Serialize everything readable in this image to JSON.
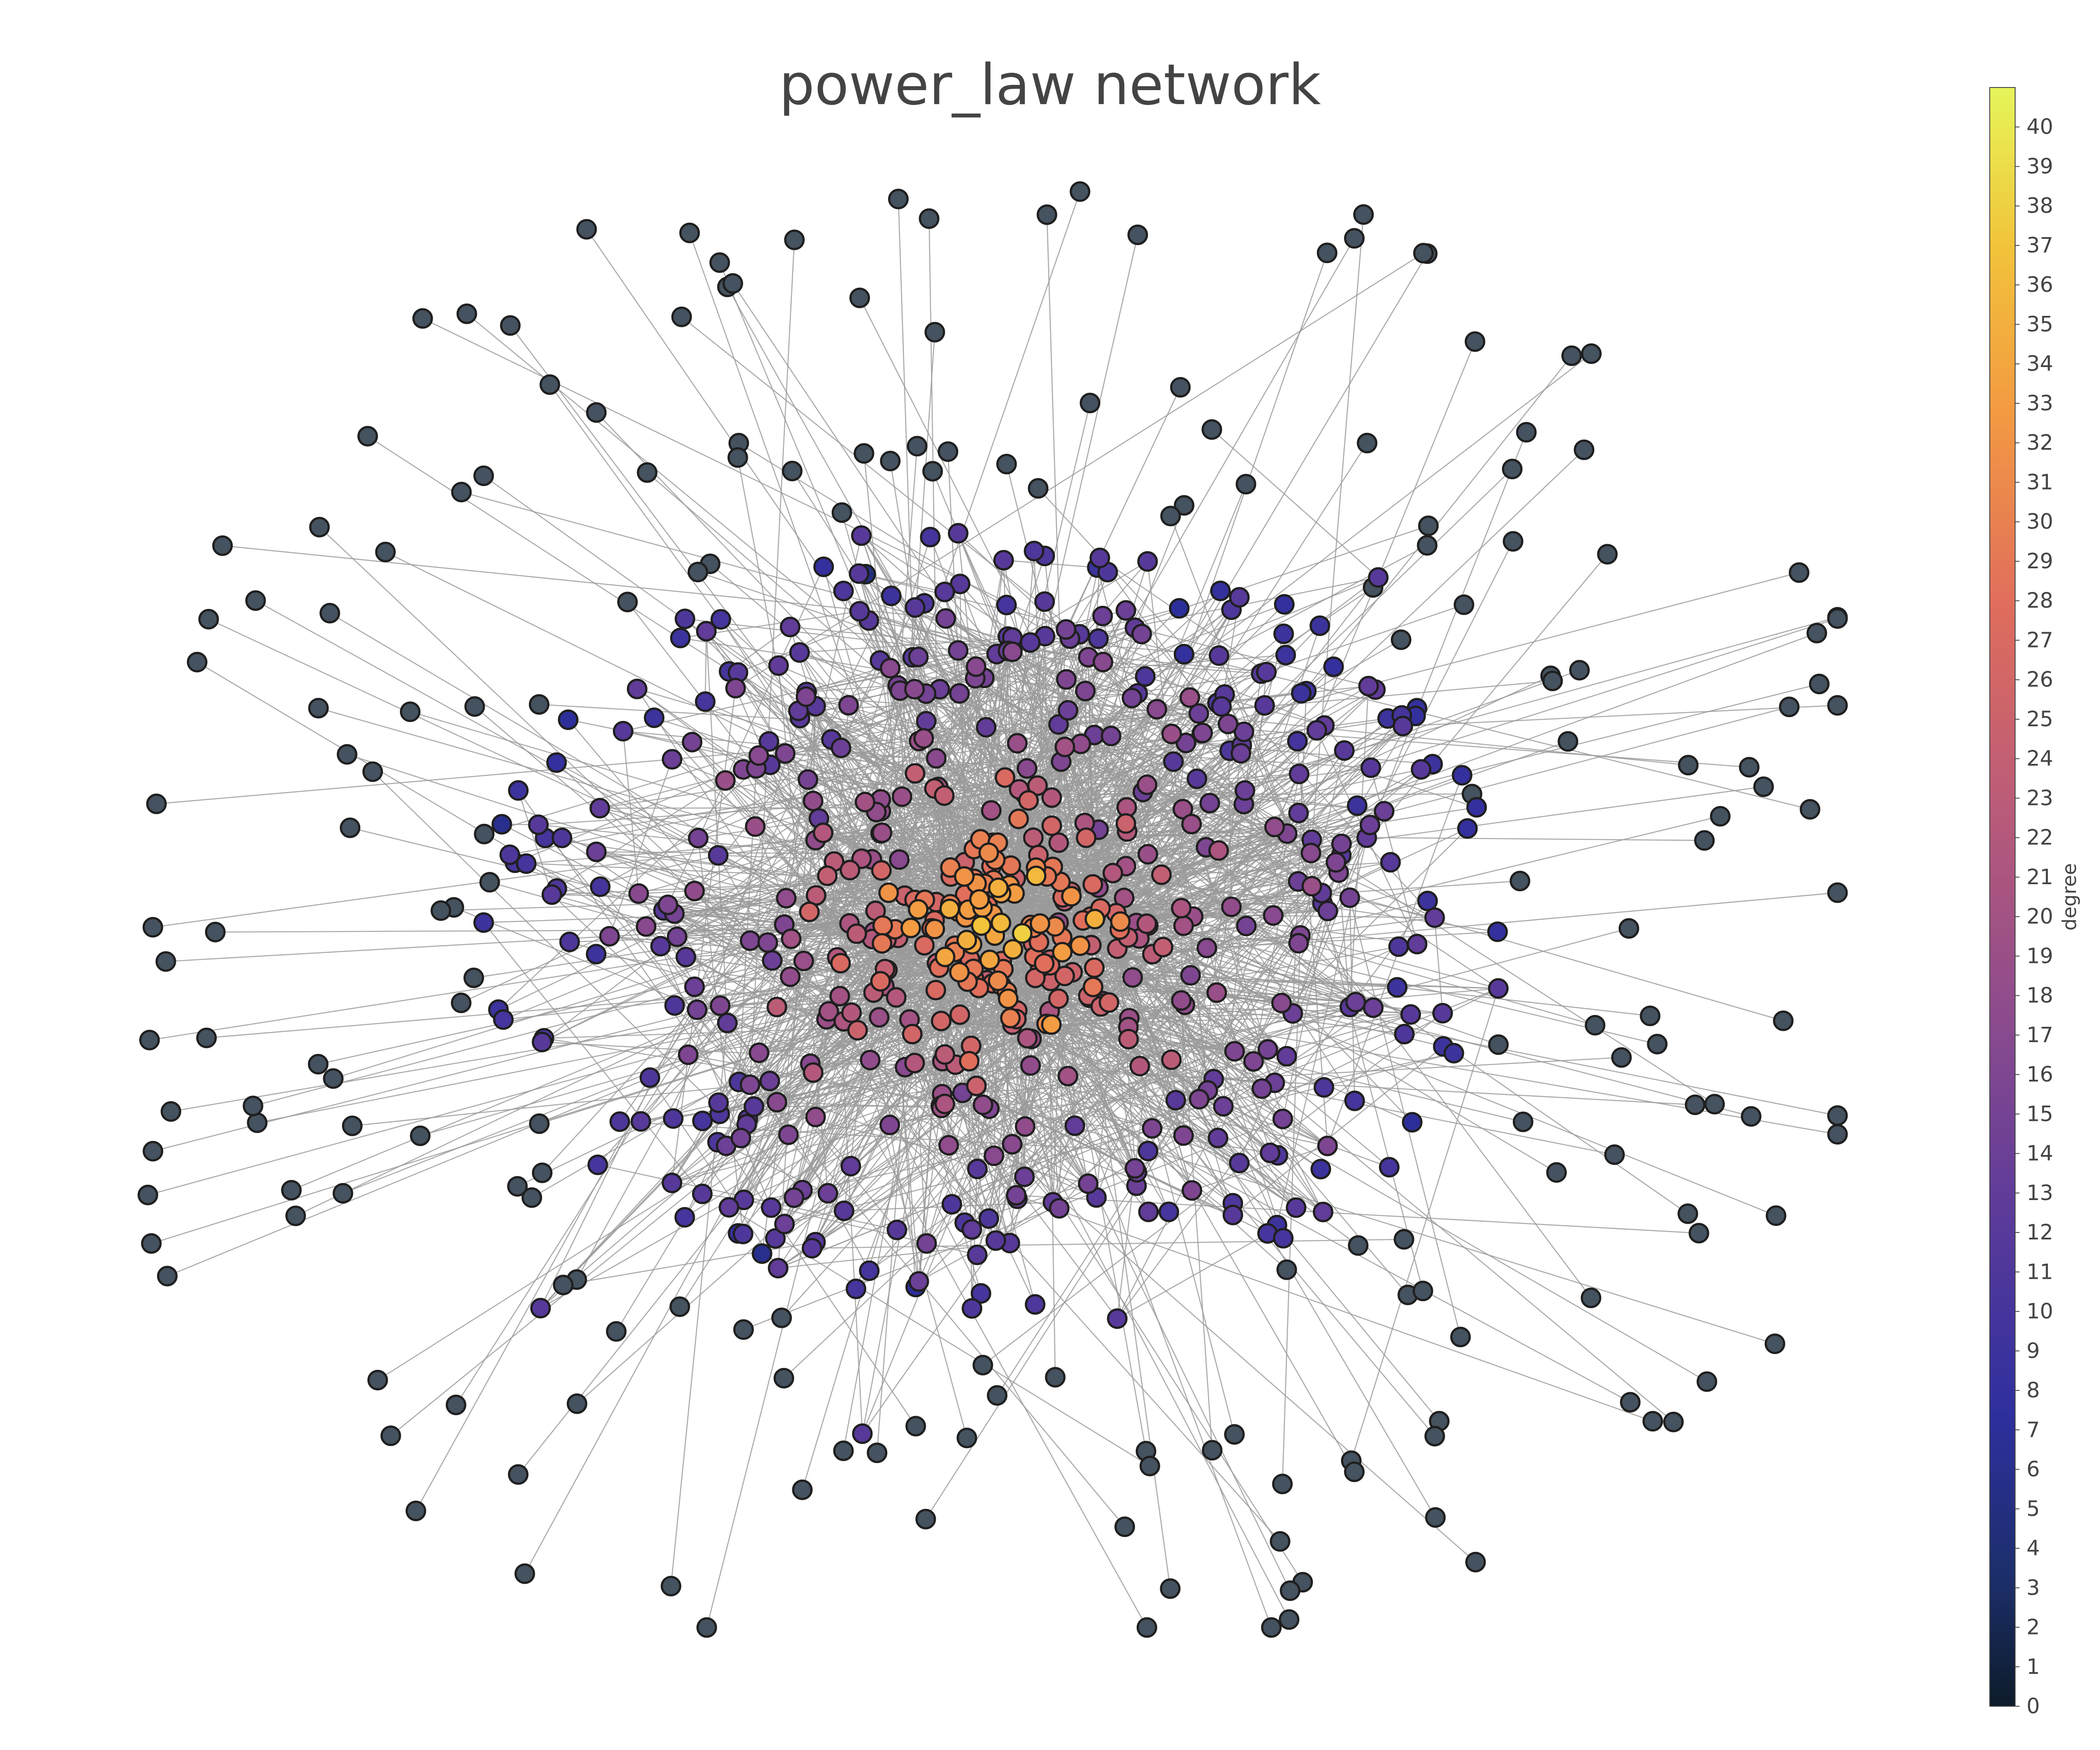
{
  "title": "power_law network",
  "colorbar": {
    "label": "degree",
    "min": 0,
    "max": 41,
    "ticks": [
      0,
      1,
      2,
      3,
      4,
      5,
      6,
      7,
      8,
      9,
      10,
      11,
      12,
      13,
      14,
      15,
      16,
      17,
      18,
      19,
      20,
      21,
      22,
      23,
      24,
      25,
      26,
      27,
      28,
      29,
      30,
      31,
      32,
      33,
      34,
      35,
      36,
      37,
      38,
      39,
      40
    ],
    "colorscale": [
      "#0d0887",
      "#3d049b",
      "#6900a8",
      "#9511a1",
      "#b83289",
      "#d5536f",
      "#eb7655",
      "#f89540",
      "#fcbb27",
      "#f0f921"
    ]
  },
  "colors": {
    "edge": "#9a9a9a",
    "node_stroke": "#1f1f1f",
    "low_degree_node": "#45525f"
  },
  "chart_data": {
    "type": "scatter",
    "title": "power_law network",
    "node_count_shown": "approx. 800",
    "color_variable": "degree",
    "degree_range": [
      0,
      41
    ],
    "structure": "dense core of high-degree nodes (degree ~15-38) surrounded by sparse periphery of low-degree nodes (degree 1-4)",
    "axes_visible": false,
    "grid": false,
    "legend": "colorbar right"
  }
}
